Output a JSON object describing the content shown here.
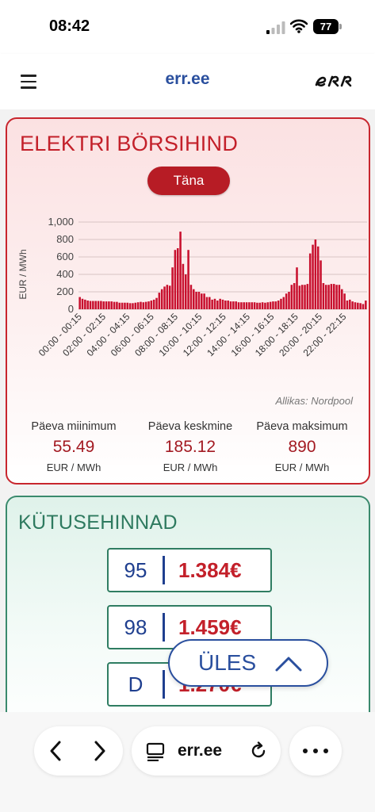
{
  "status_bar": {
    "time": "08:42",
    "battery": "77",
    "icons": [
      "signal-icon",
      "wifi-icon",
      "battery-icon"
    ]
  },
  "header": {
    "site_title": "err.ee",
    "menu_icon": "hamburger-menu-icon",
    "logo_icon": "err-logo"
  },
  "electricity": {
    "title": "ELEKTRI BÖRSIHIND",
    "day_button": "Täna",
    "source": "Allikas: Nordpool",
    "stats": [
      {
        "label": "Päeva miinimum",
        "value": "55.49",
        "unit": "EUR / MWh"
      },
      {
        "label": "Päeva keskmine",
        "value": "185.12",
        "unit": "EUR / MWh"
      },
      {
        "label": "Päeva maksimum",
        "value": "890",
        "unit": "EUR / MWh"
      }
    ]
  },
  "chart_data": {
    "type": "bar",
    "ylabel": "EUR / MWh",
    "ylim": [
      0,
      1000
    ],
    "yticks": [
      "0",
      "200",
      "400",
      "600",
      "800",
      "1,000"
    ],
    "ytick_values": [
      0,
      200,
      400,
      600,
      800,
      1000
    ],
    "xtick_labels": [
      "00:00 - 00:15",
      "02:00 - 02:15",
      "04:00 - 04:15",
      "06:00 - 06:15",
      "08:00 - 08:15",
      "10:00 - 10:15",
      "12:00 - 12:15",
      "14:00 - 14:15",
      "16:00 - 16:15",
      "18:00 - 18:15",
      "20:00 - 20:15",
      "22:00 - 22:15"
    ],
    "bar_color": "#c8102e",
    "grid": true,
    "values": [
      140,
      120,
      110,
      100,
      95,
      95,
      95,
      95,
      95,
      90,
      90,
      90,
      90,
      85,
      85,
      75,
      75,
      75,
      75,
      70,
      70,
      75,
      80,
      85,
      80,
      85,
      90,
      100,
      110,
      130,
      190,
      230,
      260,
      280,
      270,
      480,
      680,
      700,
      890,
      520,
      400,
      680,
      280,
      230,
      200,
      200,
      180,
      180,
      140,
      140,
      110,
      120,
      100,
      120,
      110,
      100,
      100,
      90,
      90,
      90,
      80,
      80,
      80,
      80,
      80,
      80,
      80,
      75,
      75,
      80,
      75,
      80,
      85,
      90,
      90,
      100,
      120,
      140,
      180,
      200,
      280,
      300,
      480,
      270,
      280,
      280,
      290,
      640,
      740,
      800,
      720,
      560,
      300,
      280,
      280,
      290,
      290,
      280,
      280,
      230,
      180,
      100,
      110,
      90,
      80,
      75,
      70,
      60,
      100
    ]
  },
  "fuel": {
    "title": "KÜTUSEHINNAD",
    "items": [
      {
        "type": "95",
        "price": "1.384€"
      },
      {
        "type": "98",
        "price": "1.459€"
      },
      {
        "type": "D",
        "price": "1.270€"
      }
    ]
  },
  "up_button": {
    "label": "ÜLES",
    "icon": "chevron-up-icon"
  },
  "toolbar": {
    "url": "err.ee",
    "icons": [
      "back-icon",
      "forward-icon",
      "reader-icon",
      "reload-icon",
      "more-icon"
    ]
  }
}
